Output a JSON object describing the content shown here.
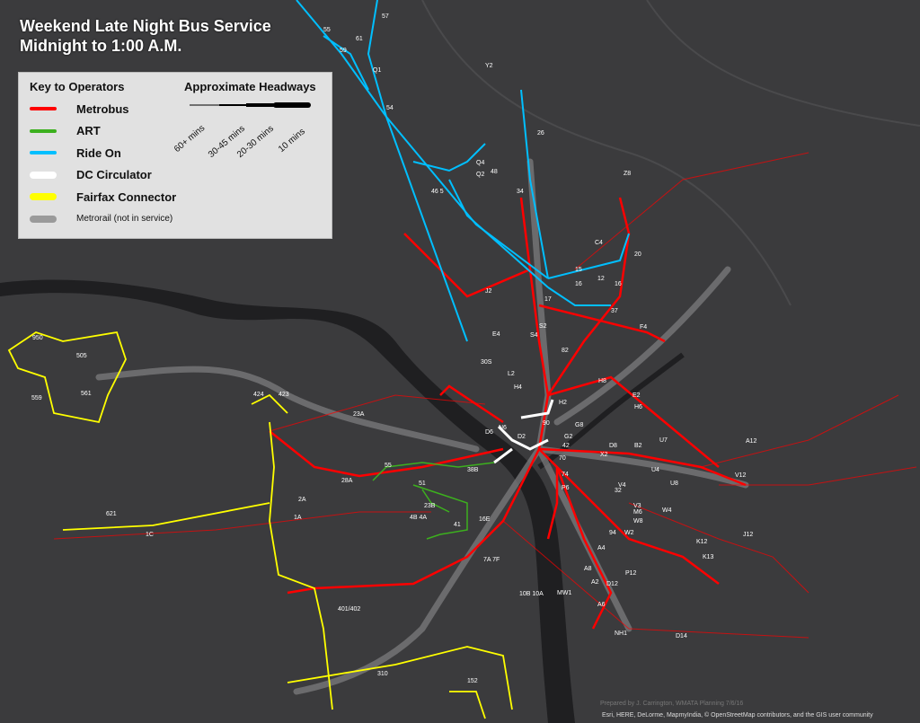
{
  "title": {
    "line1": "Weekend Late Night Bus Service",
    "line2": "Midnight to 1:00 A.M."
  },
  "legend": {
    "operators_heading": "Key to Operators",
    "operators": [
      {
        "label": "Metrobus",
        "color": "#ff0000"
      },
      {
        "label": "ART",
        "color": "#3cb01e"
      },
      {
        "label": "Ride On",
        "color": "#00bfff"
      },
      {
        "label": "DC Circulator",
        "color": "#ffffff"
      },
      {
        "label": "Fairfax Connector",
        "color": "#ffff00"
      },
      {
        "label": "Metrorail (not in service)",
        "color": "#9a9a9a"
      }
    ],
    "headways_heading": "Approximate Headways",
    "headways": [
      "60+ mins",
      "30-45 mins",
      "20-30 mins",
      "10 mins"
    ]
  },
  "route_labels": [
    "55",
    "57",
    "61",
    "59",
    "Q1",
    "Y2",
    "54",
    "26",
    "Q4",
    "48",
    "Q2",
    "34",
    "46 5",
    "Z8",
    "C4",
    "20",
    "15",
    "12",
    "16",
    "16",
    "17",
    "37",
    "J2",
    "F4",
    "E4",
    "S2",
    "S4",
    "82",
    "30S",
    "L2",
    "H4",
    "H8",
    "E2",
    "H6",
    "H2",
    "90",
    "N6",
    "D6",
    "D2",
    "G2",
    "G8",
    "42",
    "70",
    "X2",
    "D8",
    "B2",
    "U7",
    "A12",
    "V12",
    "55",
    "38B",
    "51",
    "23B",
    "28A",
    "2A",
    "1A",
    "4B 4A",
    "16E",
    "41",
    "621",
    "1C",
    "950",
    "505",
    "559",
    "561",
    "424",
    "423",
    "23A",
    "7A 7F",
    "10B 10A",
    "MW1",
    "V4",
    "U4",
    "U8",
    "V3",
    "W4",
    "M6",
    "W8",
    "W2",
    "94",
    "A4",
    "A8",
    "A2",
    "D12",
    "P12",
    "A6",
    "K13",
    "K12",
    "J12",
    "NH1",
    "D14",
    "401/402",
    "310",
    "152",
    "32",
    "P6",
    "74"
  ],
  "credits": {
    "prepared_by": "Prepared by J. Carrington, WMATA Planning 7/6/16",
    "attribution": "Esri, HERE, DeLorme, MapmyIndia, © OpenStreetMap contributors, and the GIS user community"
  },
  "colors": {
    "background": "#3b3b3d",
    "water": "#1f1f21",
    "road": "#555558"
  }
}
